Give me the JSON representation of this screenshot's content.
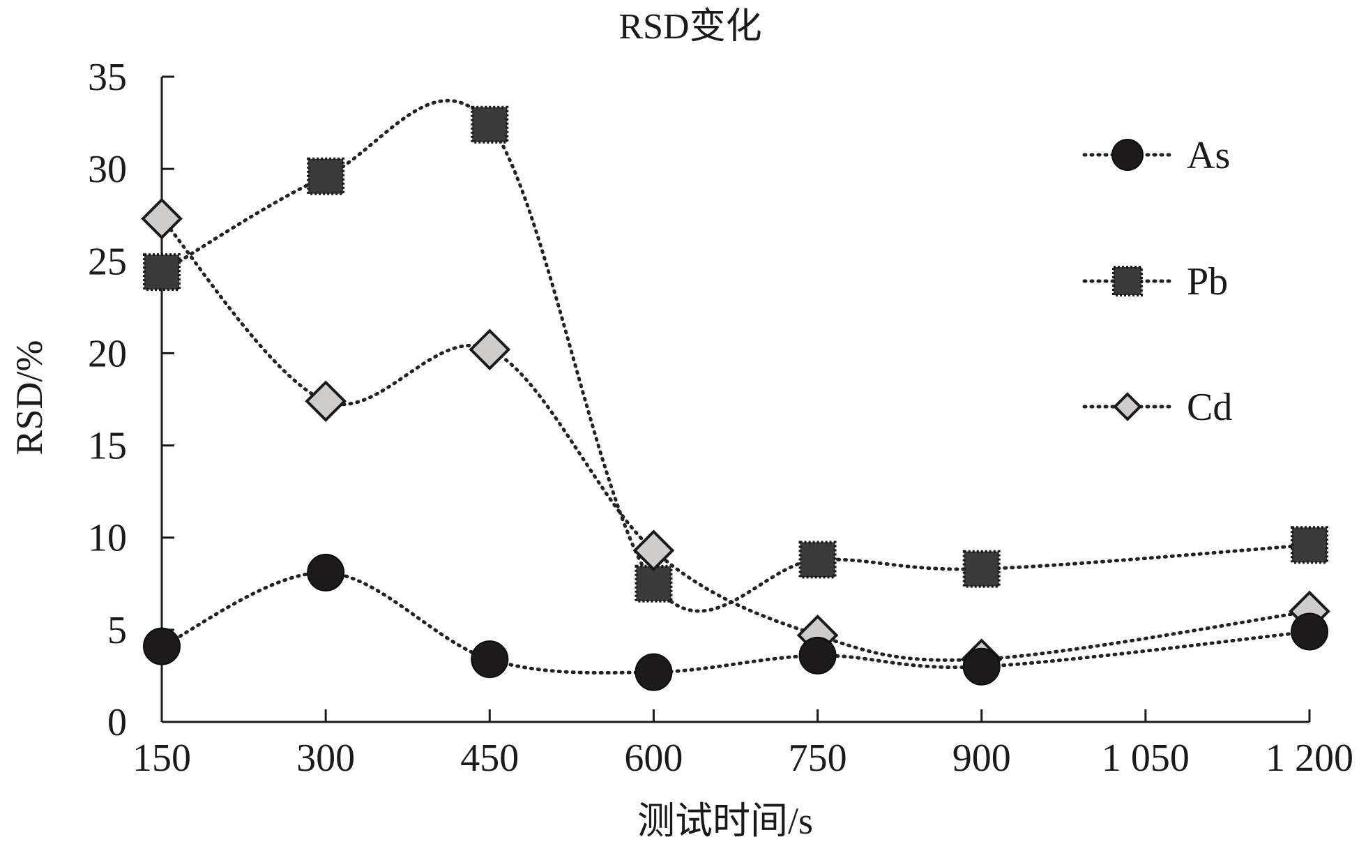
{
  "chart_data": {
    "type": "line",
    "title": "RSD变化",
    "xlabel": "测试时间/s",
    "ylabel": "RSD/%",
    "x": [
      150,
      300,
      450,
      600,
      750,
      900,
      1050,
      1200
    ],
    "x_tick_labels": [
      "150",
      "300",
      "450",
      "600",
      "750",
      "900",
      "1 050",
      "1 200"
    ],
    "y_ticks": [
      0,
      5,
      10,
      15,
      20,
      25,
      30,
      35
    ],
    "y_tick_labels": [
      "0",
      "5",
      "10",
      "15",
      "20",
      "25",
      "30",
      "35"
    ],
    "xlim": [
      150,
      1200
    ],
    "ylim": [
      0,
      35
    ],
    "grid": false,
    "legend_position": "top-right",
    "series": [
      {
        "name": "As",
        "marker": "circle",
        "fill": "#1c1a1a",
        "points": [
          [
            150,
            4.1
          ],
          [
            300,
            8.1
          ],
          [
            450,
            3.4
          ],
          [
            600,
            2.7
          ],
          [
            750,
            3.6
          ],
          [
            900,
            3.0
          ],
          [
            1200,
            4.9
          ]
        ]
      },
      {
        "name": "Pb",
        "marker": "square",
        "fill": "#3a3a3a",
        "points": [
          [
            150,
            24.4
          ],
          [
            300,
            29.6
          ],
          [
            450,
            32.4
          ],
          [
            600,
            7.5
          ],
          [
            750,
            8.8
          ],
          [
            900,
            8.3
          ],
          [
            1200,
            9.6
          ]
        ]
      },
      {
        "name": "Cd",
        "marker": "diamond",
        "fill": "#cfcccc",
        "points": [
          [
            150,
            27.3
          ],
          [
            300,
            17.4
          ],
          [
            450,
            20.2
          ],
          [
            600,
            9.3
          ],
          [
            750,
            4.7
          ],
          [
            900,
            3.4
          ],
          [
            1200,
            6.0
          ]
        ]
      }
    ]
  }
}
